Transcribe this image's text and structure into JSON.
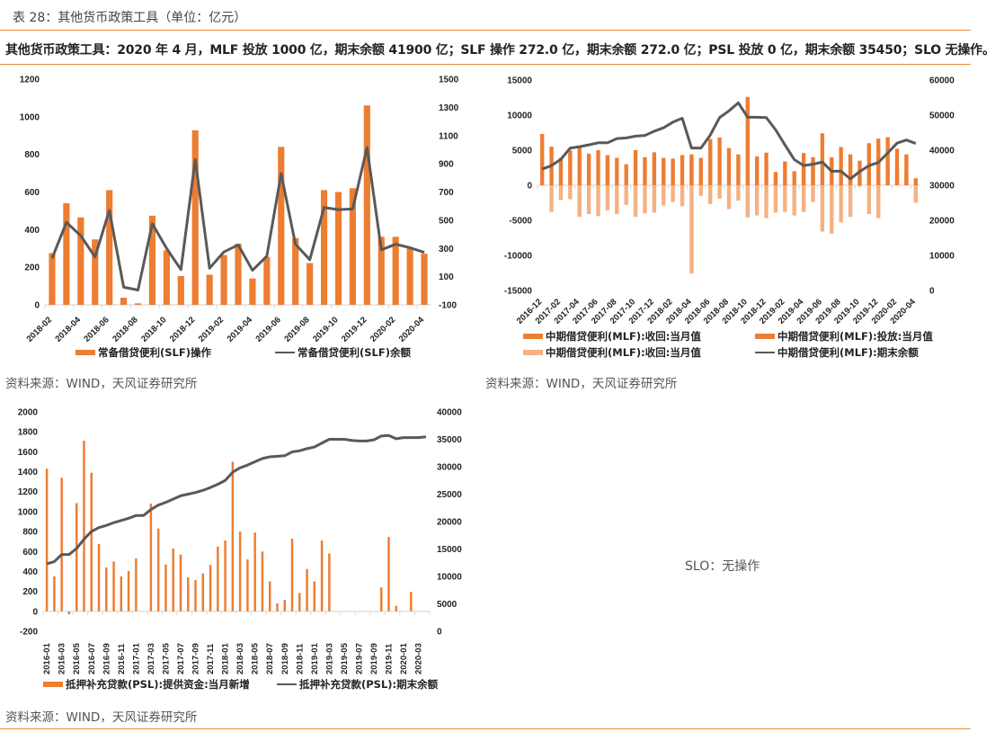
{
  "caption": "表 28：其他货币政策工具（单位：亿元）",
  "summary": "其他货币政策工具：2020 年 4 月，MLF 投放 1000 亿，期末余额 41900 亿；SLF 操作 272.0 亿，期末余额 272.0 亿；PSL 投放 0 亿，期末余额 35450；SLO 无操作。",
  "sources": {
    "slf": "资料来源：WIND，天风证券研究所",
    "mlf": "资料来源：WIND，天风证券研究所",
    "psl": "资料来源：WIND，天风证券研究所"
  },
  "slo_text": "SLO：无操作",
  "colors": {
    "accent": "#ee8a33",
    "bar": "#ed7d31",
    "bar_light": "#f4b183",
    "line": "#595959",
    "axis": "#d9d9d9"
  },
  "chart_data": [
    {
      "id": "slf",
      "type": "bar+line",
      "title": "",
      "x": [
        "2018-02",
        "2018-03",
        "2018-04",
        "2018-05",
        "2018-06",
        "2018-07",
        "2018-08",
        "2018-09",
        "2018-10",
        "2018-11",
        "2018-12",
        "2019-01",
        "2019-02",
        "2019-03",
        "2019-04",
        "2019-05",
        "2019-06",
        "2019-07",
        "2019-08",
        "2019-09",
        "2019-10",
        "2019-11",
        "2019-12",
        "2020-01",
        "2020-02",
        "2020-03",
        "2020-04"
      ],
      "xtick_labels": [
        "2018-02",
        "2018-04",
        "2018-06",
        "2018-08",
        "2018-10",
        "2018-12",
        "2019-02",
        "2019-04",
        "2019-06",
        "2019-08",
        "2019-10",
        "2019-12",
        "2020-02",
        "2020-04"
      ],
      "left_axis": {
        "ylim": [
          0,
          1200
        ],
        "ticks": [
          0,
          200,
          400,
          600,
          800,
          1000,
          1200
        ]
      },
      "right_axis": {
        "ylim": [
          -100,
          1500
        ],
        "ticks": [
          -100,
          100,
          300,
          500,
          700,
          900,
          1100,
          1300,
          1500
        ]
      },
      "series": [
        {
          "name": "常备借贷便利(SLF)操作",
          "kind": "bar",
          "axis": "left",
          "values": [
            275,
            540,
            465,
            348,
            610,
            38,
            8,
            474,
            290,
            153,
            928,
            160,
            265,
            325,
            140,
            255,
            840,
            355,
            222,
            610,
            600,
            620,
            1060,
            362,
            362,
            300,
            272
          ]
        },
        {
          "name": "常备借贷便利(SLF)余额",
          "kind": "line",
          "axis": "right",
          "values": [
            230,
            485,
            390,
            240,
            570,
            25,
            5,
            475,
            300,
            150,
            930,
            160,
            275,
            325,
            145,
            245,
            830,
            330,
            220,
            590,
            575,
            580,
            1015,
            290,
            330,
            305,
            272
          ]
        }
      ],
      "legend": [
        "常备借贷便利(SLF)操作",
        "常备借贷便利(SLF)余额"
      ],
      "legend_position": "bottom"
    },
    {
      "id": "mlf",
      "type": "bar+line",
      "x": [
        "2016-12",
        "2017-01",
        "2017-02",
        "2017-03",
        "2017-04",
        "2017-05",
        "2017-06",
        "2017-07",
        "2017-08",
        "2017-09",
        "2017-10",
        "2017-11",
        "2017-12",
        "2018-01",
        "2018-02",
        "2018-03",
        "2018-04",
        "2018-05",
        "2018-06",
        "2018-07",
        "2018-08",
        "2018-09",
        "2018-10",
        "2018-11",
        "2018-12",
        "2019-01",
        "2019-02",
        "2019-03",
        "2019-04",
        "2019-05",
        "2019-06",
        "2019-07",
        "2019-08",
        "2019-09",
        "2019-10",
        "2019-11",
        "2019-12",
        "2020-01",
        "2020-02",
        "2020-03",
        "2020-04"
      ],
      "xtick_labels": [
        "2016-12",
        "2017-02",
        "2017-04",
        "2017-06",
        "2017-08",
        "2017-10",
        "2017-12",
        "2018-02",
        "2018-04",
        "2018-06",
        "2018-08",
        "2018-10",
        "2018-12",
        "2019-02",
        "2019-04",
        "2019-06",
        "2019-08",
        "2019-10",
        "2019-12",
        "2020-02",
        "2020-04"
      ],
      "left_axis": {
        "ylim": [
          -15000,
          15000
        ],
        "ticks": [
          -15000,
          -10000,
          -5000,
          0,
          5000,
          10000,
          15000
        ]
      },
      "right_axis": {
        "ylim": [
          0,
          60000
        ],
        "ticks": [
          0,
          10000,
          20000,
          30000,
          40000,
          50000,
          60000
        ]
      },
      "series": [
        {
          "name": "中期借贷便利(MLF):投放:当月值",
          "kind": "bar",
          "axis": "left",
          "values": [
            7300,
            5500,
            3900,
            5000,
            5400,
            4500,
            5000,
            4300,
            3900,
            3000,
            5000,
            4000,
            4700,
            3900,
            3800,
            4300,
            4400,
            3900,
            6600,
            6800,
            5300,
            4400,
            12600,
            4100,
            4650,
            1900,
            3400,
            2000,
            4600,
            4000,
            7400,
            4000,
            5450,
            4400,
            3500,
            6000,
            6650,
            6850,
            5200,
            4400,
            1000
          ]
        },
        {
          "name": "中期借贷便利(MLF):收回:当月值",
          "kind": "bar_dark",
          "axis": "left",
          "values": [
            0,
            0,
            0,
            0,
            0,
            0,
            0,
            3600,
            0,
            0,
            0,
            0,
            0,
            0,
            0,
            0,
            3600,
            1500,
            0,
            0,
            0,
            0,
            0,
            0,
            0,
            0,
            0,
            0,
            3100,
            3400,
            0,
            0,
            0,
            3300,
            0,
            0,
            4200,
            3000,
            1800,
            1900,
            0
          ]
        },
        {
          "name": "中期借贷便利(MLF):收回:当月值",
          "kind": "bar_neg",
          "axis": "left",
          "values": [
            0,
            -3800,
            -2100,
            -2000,
            -4500,
            -4100,
            -4400,
            -3600,
            -4100,
            -2800,
            -4500,
            -4000,
            -3900,
            -2900,
            -2400,
            -3000,
            -12600,
            -1500,
            -2700,
            -1900,
            -3400,
            -2200,
            -4600,
            -4300,
            -4700,
            -3900,
            -3800,
            -4300,
            -3800,
            -2400,
            -6600,
            -6900,
            -5300,
            -4500,
            -200,
            -4100,
            -4700,
            0,
            0,
            0,
            -2500
          ]
        },
        {
          "name": "中期借贷便利(MLF):期末余额",
          "kind": "line",
          "axis": "right",
          "values": [
            34600,
            35600,
            37400,
            40600,
            41000,
            41500,
            42100,
            42100,
            43300,
            43500,
            44000,
            44200,
            45400,
            46400,
            48000,
            49100,
            40600,
            40600,
            44300,
            49300,
            51200,
            53500,
            49400,
            49400,
            49300,
            45800,
            41500,
            37300,
            35600,
            36000,
            36600,
            34000,
            34000,
            31800,
            33900,
            35600,
            36500,
            39200,
            42000,
            42900,
            41900
          ]
        }
      ],
      "legend": [
        "中期借贷便利(MLF):收回:当月值",
        "中期借贷便利(MLF):投放:当月值",
        "中期借贷便利(MLF):收回:当月值",
        "中期借贷便利(MLF):期末余额"
      ],
      "legend_position": "bottom"
    },
    {
      "id": "psl",
      "type": "bar+line",
      "x": [
        "2016-01",
        "2016-02",
        "2016-03",
        "2016-04",
        "2016-05",
        "2016-06",
        "2016-07",
        "2016-08",
        "2016-09",
        "2016-10",
        "2016-11",
        "2016-12",
        "2017-01",
        "2017-02",
        "2017-03",
        "2017-04",
        "2017-05",
        "2017-06",
        "2017-07",
        "2017-08",
        "2017-09",
        "2017-10",
        "2017-11",
        "2017-12",
        "2018-01",
        "2018-02",
        "2018-03",
        "2018-04",
        "2018-05",
        "2018-06",
        "2018-07",
        "2018-08",
        "2018-09",
        "2018-10",
        "2018-11",
        "2018-12",
        "2019-01",
        "2019-02",
        "2019-03",
        "2019-04",
        "2019-05",
        "2019-06",
        "2019-07",
        "2019-08",
        "2019-09",
        "2019-10",
        "2019-11",
        "2019-12",
        "2020-01",
        "2020-02",
        "2020-03",
        "2020-04"
      ],
      "xtick_labels": [
        "2016-01",
        "2016-03",
        "2016-05",
        "2016-07",
        "2016-09",
        "2016-11",
        "2017-01",
        "2017-03",
        "2017-05",
        "2017-07",
        "2017-09",
        "2017-11",
        "2018-01",
        "2018-03",
        "2018-05",
        "2018-07",
        "2018-09",
        "2018-11",
        "2019-01",
        "2019-03",
        "2019-05",
        "2019-07",
        "2019-09",
        "2019-11",
        "2020-01",
        "2020-03"
      ],
      "left_axis": {
        "ylim": [
          -200,
          2000
        ],
        "ticks": [
          -200,
          0,
          200,
          400,
          600,
          800,
          1000,
          1200,
          1400,
          1600,
          1800,
          2000
        ]
      },
      "right_axis": {
        "ylim": [
          0,
          40000
        ],
        "ticks": [
          0,
          5000,
          10000,
          15000,
          20000,
          25000,
          30000,
          35000,
          40000
        ]
      },
      "series": [
        {
          "name": "抵押补充贷款(PSL):提供资金:当月新增",
          "kind": "bar",
          "axis": "left",
          "values": [
            1430,
            350,
            1340,
            -30,
            1085,
            1710,
            1390,
            675,
            440,
            500,
            350,
            405,
            530,
            0,
            1080,
            830,
            470,
            630,
            570,
            340,
            315,
            380,
            465,
            650,
            710,
            1500,
            800,
            520,
            790,
            600,
            300,
            80,
            115,
            730,
            185,
            425,
            300,
            710,
            580,
            0,
            0,
            0,
            0,
            0,
            0,
            240,
            745,
            55,
            0,
            195,
            0,
            0
          ]
        },
        {
          "name": "抵押补充贷款(PSL):期末余额",
          "kind": "line",
          "axis": "right",
          "values": [
            12300,
            12700,
            14000,
            14000,
            15100,
            16800,
            18200,
            18900,
            19300,
            19800,
            20200,
            20600,
            21100,
            21100,
            22200,
            23000,
            23500,
            24100,
            24700,
            25000,
            25300,
            25700,
            26200,
            26800,
            27500,
            29000,
            29800,
            30300,
            30900,
            31500,
            31800,
            31900,
            32000,
            32700,
            32900,
            33300,
            33600,
            34300,
            35000,
            35000,
            35000,
            34800,
            34700,
            34700,
            34900,
            35600,
            35700,
            35100,
            35300,
            35300,
            35300,
            35450
          ]
        }
      ],
      "legend": [
        "抵押补充贷款(PSL):提供资金:当月新增",
        "抵押补充贷款(PSL):期末余额"
      ],
      "legend_position": "bottom"
    }
  ]
}
